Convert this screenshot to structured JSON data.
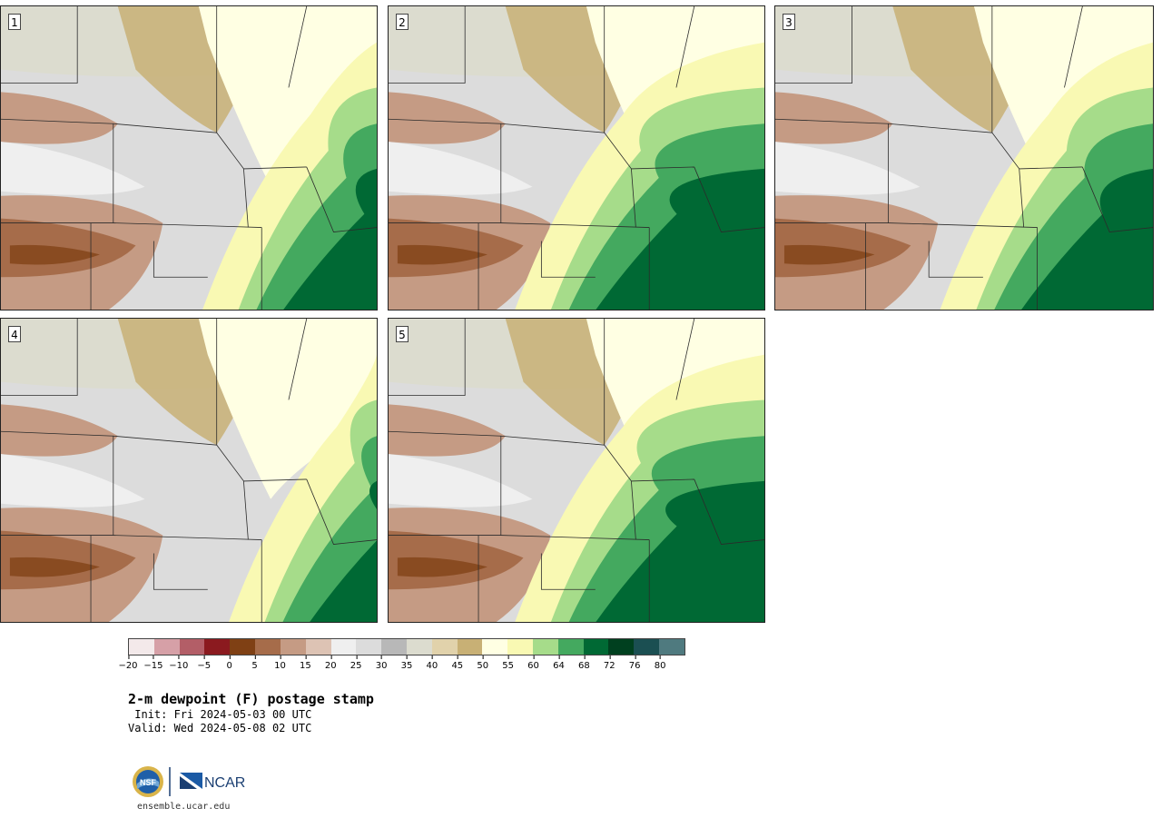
{
  "panels": [
    {
      "label": "1",
      "gradient": [
        0.68,
        0.86
      ]
    },
    {
      "label": "2",
      "gradient": [
        0.48,
        0.63
      ]
    },
    {
      "label": "3",
      "gradient": [
        0.58,
        0.78
      ]
    },
    {
      "label": "4",
      "gradient": [
        0.75,
        0.9
      ]
    },
    {
      "label": "5",
      "gradient": [
        0.48,
        0.6
      ]
    }
  ],
  "colorbar": {
    "ticks": [
      "−20",
      "−15",
      "−10",
      "−5",
      "0",
      "5",
      "10",
      "15",
      "20",
      "25",
      "30",
      "35",
      "40",
      "45",
      "50",
      "55",
      "60",
      "64",
      "68",
      "72",
      "76",
      "80"
    ],
    "colors": [
      "#f3e9ea",
      "#d6a0a7",
      "#b35e67",
      "#8b1a1f",
      "#7f4014",
      "#a66c4a",
      "#c59b84",
      "#ddc3b4",
      "#efefef",
      "#dcdcdc",
      "#b8b8b8",
      "#dcdccf",
      "#e1d2ab",
      "#c8b075",
      "#ffffe3",
      "#f9f9b3",
      "#a6dc8a",
      "#44a95f",
      "#006934",
      "#00401f",
      "#1b4f52",
      "#4f7a7f"
    ]
  },
  "title": "2-m dewpoint (F) postage stamp",
  "init": " Init: Fri 2024-05-03 00 UTC",
  "valid": "Valid: Wed 2024-05-08 02 UTC",
  "logos": {
    "left": "NSF",
    "right": "NCAR"
  },
  "url": "ensemble.ucar.edu"
}
